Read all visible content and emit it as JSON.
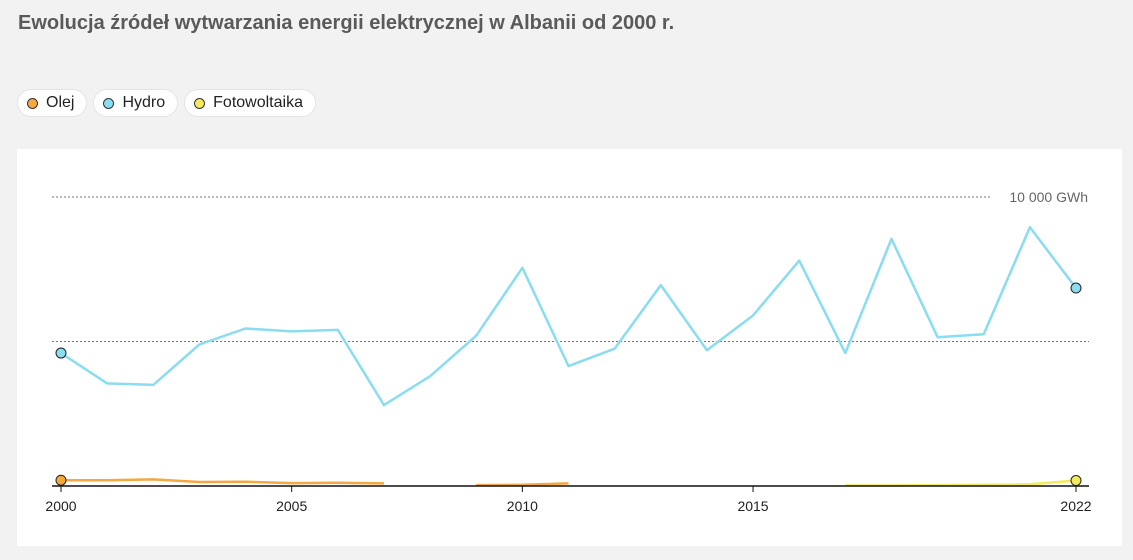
{
  "title": "Ewolucja źródeł wytwarzania energii elektrycznej w Albanii od 2000 r.",
  "legend": [
    {
      "label": "Olej",
      "color": "#f5a742"
    },
    {
      "label": "Hydro",
      "color": "#8adcf0"
    },
    {
      "label": "Fotowoltaika",
      "color": "#f5ea5a"
    }
  ],
  "chart_data": {
    "type": "line",
    "x": [
      2000,
      2001,
      2002,
      2003,
      2004,
      2005,
      2006,
      2007,
      2008,
      2009,
      2010,
      2011,
      2012,
      2013,
      2014,
      2015,
      2016,
      2017,
      2018,
      2019,
      2020,
      2021,
      2022
    ],
    "xlim": [
      2000,
      2022
    ],
    "ylim": [
      0,
      10000
    ],
    "xticks": [
      "2000",
      "2005",
      "2010",
      "2015",
      "2022"
    ],
    "gridlines": [
      5000,
      10000
    ],
    "ytick_label": "10 000 GWh",
    "series": [
      {
        "name": "Olej",
        "color": "#f5a742",
        "values": [
          200,
          200,
          230,
          140,
          150,
          100,
          110,
          90,
          null,
          30,
          40,
          90,
          null,
          null,
          null,
          null,
          null,
          null,
          null,
          null,
          null,
          null,
          null
        ],
        "endpoints": [
          0
        ]
      },
      {
        "name": "Hydro",
        "color": "#8adcf0",
        "values": [
          4600,
          3550,
          3500,
          4900,
          5450,
          5350,
          5400,
          2800,
          3800,
          5200,
          7550,
          4150,
          4750,
          6950,
          4700,
          5900,
          7800,
          4600,
          8550,
          5150,
          5250,
          8950,
          6850
        ],
        "endpoints": [
          0,
          22
        ]
      },
      {
        "name": "Fotowoltaika",
        "color": "#f5ea5a",
        "values": [
          null,
          null,
          null,
          null,
          null,
          null,
          null,
          null,
          null,
          null,
          null,
          null,
          null,
          null,
          null,
          null,
          null,
          20,
          20,
          30,
          40,
          60,
          190
        ],
        "endpoints": [
          22
        ]
      }
    ]
  }
}
